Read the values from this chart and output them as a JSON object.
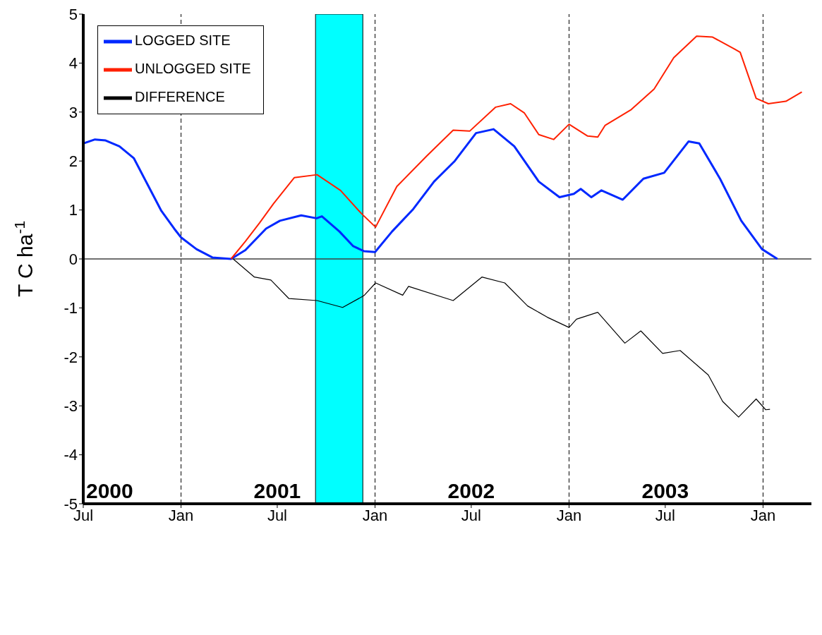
{
  "chart_data": {
    "type": "line",
    "ylabel": "T C ha$^{-1}$",
    "xlim": [
      "2000-07-01",
      "2004-04-01"
    ],
    "xticks": [
      {
        "value": "2000-07-01",
        "label": "Jul"
      },
      {
        "value": "2001-01-01",
        "label": "Jan"
      },
      {
        "value": "2001-07-01",
        "label": "Jul"
      },
      {
        "value": "2002-01-01",
        "label": "Jan"
      },
      {
        "value": "2002-07-01",
        "label": "Jul"
      },
      {
        "value": "2003-01-01",
        "label": "Jan"
      },
      {
        "value": "2003-07-01",
        "label": "Jul"
      },
      {
        "value": "2004-01-01",
        "label": "Jan"
      }
    ],
    "ylim": [
      -5,
      5
    ],
    "yticks": [
      -5,
      -4,
      -3,
      -2,
      -1,
      0,
      1,
      2,
      3,
      4,
      5
    ],
    "legend": "top left",
    "series": [
      {
        "name": "LOGGED SITE",
        "color": "#0028ff",
        "x": [
          "2000-07-01",
          "2000-07-23",
          "2000-08-12",
          "2000-09-07",
          "2000-10-04",
          "2000-10-30",
          "2000-11-25",
          "2000-12-19",
          "2001-01-01",
          "2001-01-30",
          "2001-03-01",
          "2001-04-05",
          "2001-05-02",
          "2001-06-10",
          "2001-07-06",
          "2001-08-15",
          "2001-09-13",
          "2001-09-23",
          "2001-10-26",
          "2001-11-21",
          "2001-12-11",
          "2002-01-01",
          "2002-02-02",
          "2002-03-14",
          "2002-04-22",
          "2002-05-31",
          "2002-07-10",
          "2002-08-12",
          "2002-09-20",
          "2002-11-05",
          "2002-12-14",
          "2003-01-10",
          "2003-01-23",
          "2003-02-12",
          "2003-03-03",
          "2003-04-12",
          "2003-05-21",
          "2003-06-29",
          "2003-08-14",
          "2003-09-03",
          "2003-10-12",
          "2003-11-21",
          "2003-12-30",
          "2004-01-28"
        ],
        "values": [
          2.36,
          2.44,
          2.42,
          2.3,
          2.06,
          1.52,
          0.98,
          0.62,
          0.44,
          0.2,
          0.03,
          0,
          0.18,
          0.62,
          0.78,
          0.89,
          0.83,
          0.87,
          0.56,
          0.26,
          0.16,
          0.14,
          0.56,
          1.02,
          1.58,
          2.0,
          2.57,
          2.65,
          2.3,
          1.58,
          1.26,
          1.33,
          1.43,
          1.26,
          1.4,
          1.21,
          1.64,
          1.76,
          2.4,
          2.36,
          1.64,
          0.78,
          0.2,
          0
        ]
      },
      {
        "name": "UNLOGGED SITE",
        "color": "#ff2000",
        "x": [
          "2001-04-05",
          "2001-05-02",
          "2001-05-29",
          "2001-06-24",
          "2001-08-02",
          "2001-09-14",
          "2001-10-28",
          "2001-12-07",
          "2002-01-02",
          "2002-02-11",
          "2002-04-08",
          "2002-05-28",
          "2002-06-28",
          "2002-08-16",
          "2002-09-13",
          "2002-10-09",
          "2002-11-05",
          "2002-12-03",
          "2003-01-01",
          "2003-02-05",
          "2003-02-24",
          "2003-03-10",
          "2003-04-28",
          "2003-06-10",
          "2003-07-17",
          "2003-08-29",
          "2003-09-28",
          "2003-11-08",
          "2003-11-19",
          "2003-12-19",
          "2004-01-11",
          "2004-02-13",
          "2004-03-14"
        ],
        "values": [
          0,
          0.36,
          0.74,
          1.13,
          1.66,
          1.72,
          1.4,
          0.92,
          0.65,
          1.48,
          2.1,
          2.63,
          2.61,
          3.1,
          3.17,
          2.98,
          2.54,
          2.44,
          2.75,
          2.51,
          2.49,
          2.73,
          3.05,
          3.47,
          4.11,
          4.55,
          4.53,
          4.29,
          4.22,
          3.28,
          3.17,
          3.22,
          3.41
        ]
      },
      {
        "name": "DIFFERENCE",
        "color": "#000000",
        "x": [
          "2001-04-09",
          "2001-05-19",
          "2001-06-19",
          "2001-07-23",
          "2001-09-14",
          "2001-11-01",
          "2001-12-11",
          "2002-01-02",
          "2002-02-22",
          "2002-03-05",
          "2002-05-28",
          "2002-07-21",
          "2002-09-02",
          "2002-10-15",
          "2002-11-21",
          "2003-01-01",
          "2003-01-15",
          "2003-02-24",
          "2003-04-16",
          "2003-05-16",
          "2003-06-26",
          "2003-07-29",
          "2003-09-20",
          "2003-10-17",
          "2003-11-16",
          "2003-12-19",
          "2004-01-06",
          "2004-01-14"
        ],
        "values": [
          0,
          -0.37,
          -0.43,
          -0.81,
          -0.85,
          -0.99,
          -0.75,
          -0.49,
          -0.74,
          -0.56,
          -0.85,
          -0.37,
          -0.49,
          -0.96,
          -1.19,
          -1.4,
          -1.23,
          -1.09,
          -1.72,
          -1.47,
          -1.93,
          -1.87,
          -2.37,
          -2.91,
          -3.23,
          -2.86,
          -3.08,
          -3.07
        ]
      }
    ],
    "bands": [
      {
        "axis": "x",
        "from": "2001-09-11",
        "to": "2001-12-09",
        "color": "#00ffff"
      }
    ],
    "ref_lines": [
      {
        "axis": "y",
        "value": 0,
        "color": "#404040",
        "line_style": "solid"
      },
      {
        "axis": "x",
        "value": "2001-01-01",
        "color": "#000000",
        "line_style": "dashed"
      },
      {
        "axis": "x",
        "value": "2002-01-01",
        "color": "#000000",
        "line_style": "dashed"
      },
      {
        "axis": "x",
        "value": "2003-01-01",
        "color": "#000000",
        "line_style": "dashed"
      },
      {
        "axis": "x",
        "value": "2004-01-01",
        "color": "#000000",
        "line_style": "dashed"
      }
    ],
    "annotations": [
      "2000",
      "2001",
      "2002",
      "2003"
    ]
  }
}
